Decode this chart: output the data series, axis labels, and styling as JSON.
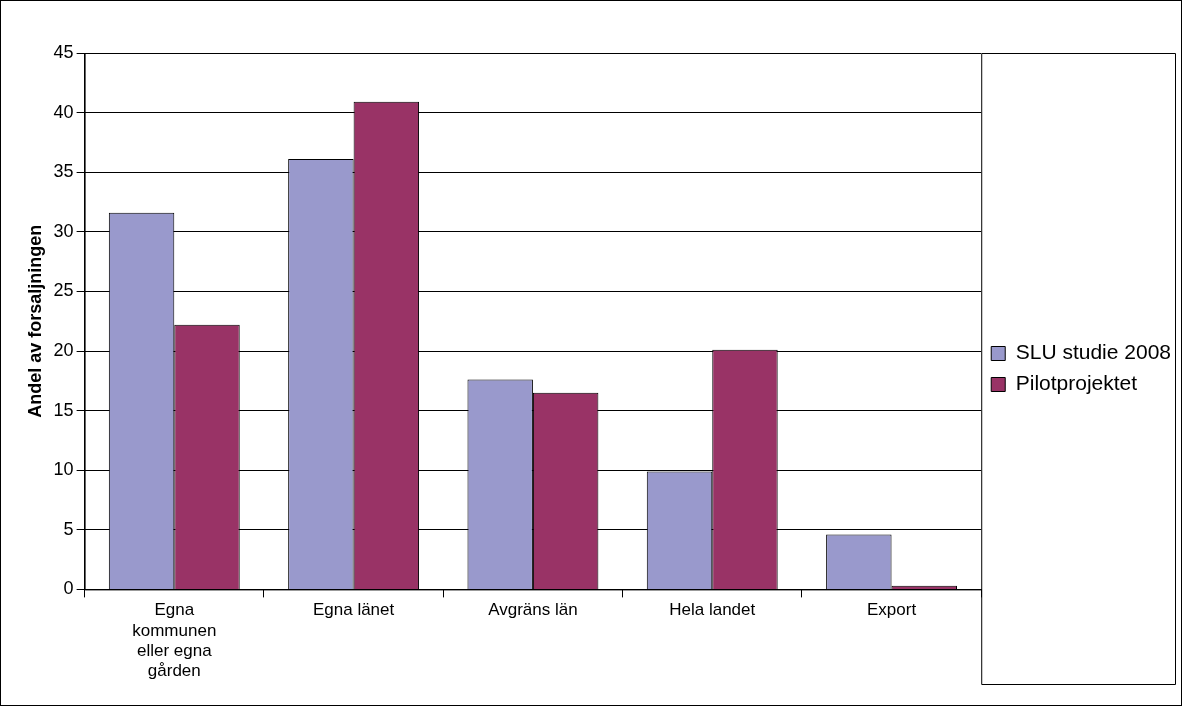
{
  "chart_data": {
    "type": "bar",
    "ylabel": "Andel av forsaljningen",
    "categories": [
      "Egna kommunen eller egna gården",
      "Egna länet",
      "Avgräns län",
      "Hela landet",
      "Export"
    ],
    "series": [
      {
        "name": "SLU studie 2008",
        "color": "#9999cc",
        "values": [
          31.6,
          36.1,
          17.6,
          9.9,
          4.6
        ]
      },
      {
        "name": "Pilotprojektet",
        "color": "#993366",
        "values": [
          22.2,
          40.9,
          16.5,
          20.1,
          0.3
        ]
      }
    ],
    "ylim": [
      0,
      45
    ],
    "yticks": [
      0,
      5,
      10,
      15,
      20,
      25,
      30,
      35,
      40,
      45
    ],
    "grid": "y",
    "legend": "right"
  }
}
